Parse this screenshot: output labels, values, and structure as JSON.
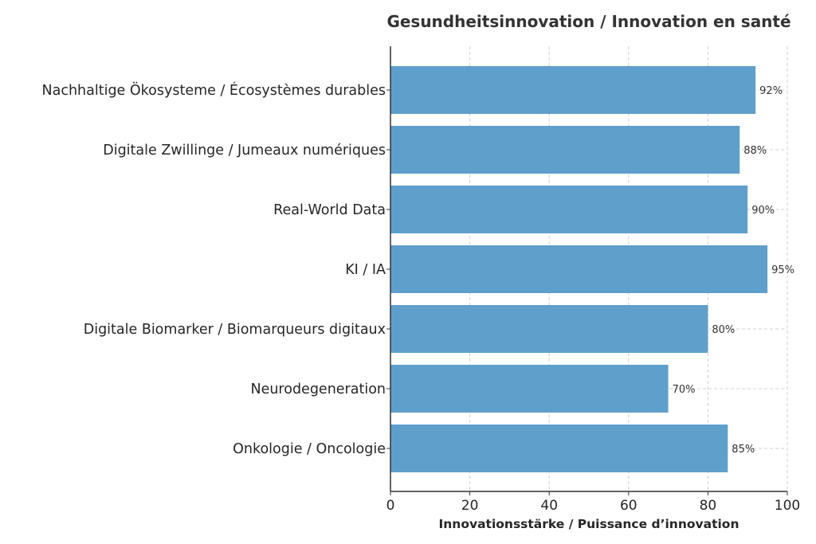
{
  "chart_data": {
    "type": "bar",
    "orientation": "horizontal",
    "title": "Gesundheitsinnovation / Innovation en santé",
    "xlabel": "Innovationsstärke / Puissance d’innovation",
    "ylabel": "",
    "categories": [
      "Nachhaltige Ökosysteme / Écosystèmes durables",
      "Digitale Zwillinge / Jumeaux numériques",
      "Real-World Data",
      "KI / IA",
      "Digitale Biomarker / Biomarqueurs digitaux",
      "Neurodegeneration",
      "Onkologie / Oncologie"
    ],
    "values": [
      92,
      88,
      90,
      95,
      80,
      70,
      85
    ],
    "data_labels": [
      "92%",
      "88%",
      "90%",
      "95%",
      "80%",
      "70%",
      "85%"
    ],
    "xlim": [
      0,
      100
    ],
    "xticks": [
      "0",
      "20",
      "40",
      "60",
      "80",
      "100"
    ],
    "grid": true,
    "bar_color": "#5f9fcb"
  }
}
